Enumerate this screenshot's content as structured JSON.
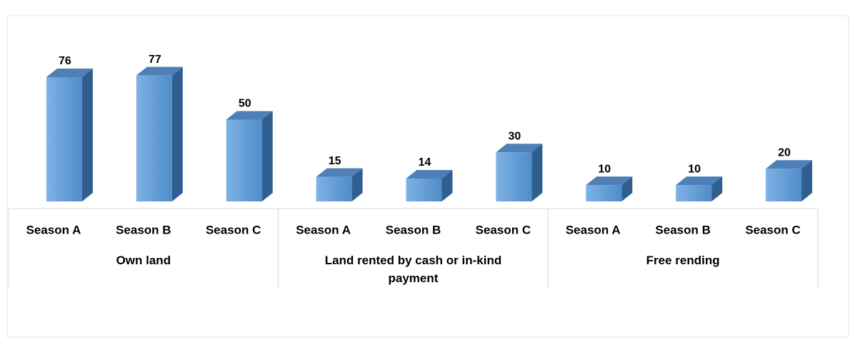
{
  "chart_data": {
    "type": "bar3d",
    "categories": [
      "Season A",
      "Season B",
      "Season C",
      "Season A",
      "Season B",
      "Season C",
      "Season A",
      "Season B",
      "Season C"
    ],
    "groups": [
      "Own land",
      "Land rented by cash or in-kind payment",
      "Free rending"
    ],
    "values": [
      76,
      77,
      50,
      15,
      14,
      30,
      10,
      10,
      20
    ],
    "color": "#5b9bd5"
  }
}
